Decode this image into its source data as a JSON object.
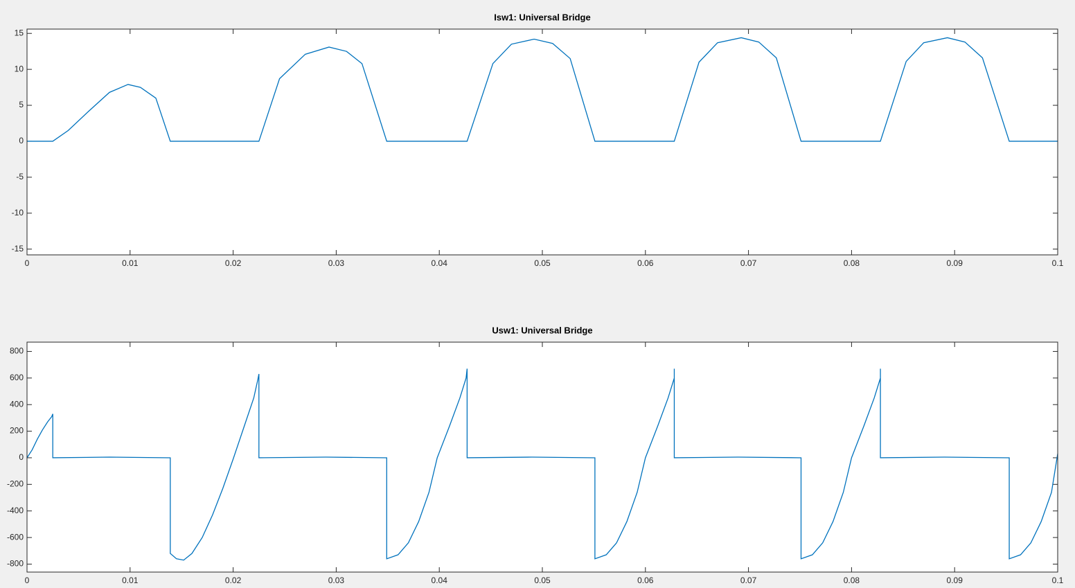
{
  "chart_data": [
    {
      "type": "line",
      "title": "Isw1: Universal Bridge",
      "x": [
        0,
        0.0025,
        0.004,
        0.006,
        0.008,
        0.0098,
        0.011,
        0.0125,
        0.0139,
        0.0225,
        0.0245,
        0.027,
        0.0293,
        0.031,
        0.0325,
        0.0349,
        0.0427,
        0.0452,
        0.047,
        0.0492,
        0.051,
        0.0527,
        0.0551,
        0.0628,
        0.0652,
        0.067,
        0.0693,
        0.071,
        0.0727,
        0.0751,
        0.0828,
        0.0853,
        0.087,
        0.0893,
        0.091,
        0.0927,
        0.0953,
        0.1
      ],
      "series": [
        {
          "color": "#0072bd",
          "values": [
            0,
            0,
            1.5,
            4.2,
            6.8,
            7.9,
            7.5,
            6.0,
            0,
            0,
            8.7,
            12.1,
            13.1,
            12.5,
            10.8,
            0,
            0,
            10.8,
            13.5,
            14.2,
            13.6,
            11.5,
            0,
            0,
            11.0,
            13.7,
            14.4,
            13.8,
            11.6,
            0,
            0,
            11.1,
            13.7,
            14.4,
            13.8,
            11.6,
            0,
            0
          ]
        }
      ],
      "xlim": [
        0,
        0.1
      ],
      "xticks": [
        0,
        0.01,
        0.02,
        0.03,
        0.04,
        0.05,
        0.06,
        0.07,
        0.08,
        0.09,
        0.1
      ],
      "ylim": [
        -15.8,
        15.6
      ],
      "yticks": [
        -15,
        -10,
        -5,
        0,
        5,
        10,
        15
      ]
    },
    {
      "type": "line",
      "title": "Usw1: Universal Bridge",
      "x": [
        0,
        0.0005,
        0.001,
        0.0015,
        0.002,
        0.0024,
        0.0025,
        0.0025,
        0.008,
        0.0139,
        0.0139,
        0.0145,
        0.0152,
        0.016,
        0.017,
        0.018,
        0.019,
        0.02,
        0.021,
        0.022,
        0.0224,
        0.0225,
        0.0225,
        0.029,
        0.0349,
        0.0349,
        0.036,
        0.037,
        0.038,
        0.039,
        0.0398,
        0.041,
        0.042,
        0.0426,
        0.0427,
        0.0427,
        0.049,
        0.0551,
        0.0551,
        0.0562,
        0.0572,
        0.0582,
        0.0592,
        0.06,
        0.0612,
        0.0622,
        0.0628,
        0.0628,
        0.0628,
        0.069,
        0.0751,
        0.0751,
        0.0762,
        0.0772,
        0.0782,
        0.0792,
        0.08,
        0.0812,
        0.0822,
        0.0828,
        0.0828,
        0.0828,
        0.089,
        0.0953,
        0.0953,
        0.0964,
        0.0974,
        0.0984,
        0.0994,
        0.1
      ],
      "series": [
        {
          "color": "#0072bd",
          "values": [
            0,
            60,
            140,
            210,
            270,
            310,
            330,
            0,
            5,
            0,
            -720,
            -760,
            -770,
            -720,
            -600,
            -430,
            -230,
            -10,
            220,
            450,
            590,
            630,
            0,
            5,
            0,
            -760,
            -730,
            -640,
            -480,
            -260,
            0,
            240,
            450,
            600,
            670,
            0,
            5,
            0,
            -760,
            -730,
            -640,
            -480,
            -260,
            0,
            240,
            450,
            600,
            670,
            0,
            5,
            0,
            -760,
            -730,
            -640,
            -480,
            -260,
            0,
            240,
            450,
            600,
            670,
            0,
            5,
            0,
            -760,
            -730,
            -640,
            -480,
            -260,
            30
          ]
        }
      ],
      "xlim": [
        0,
        0.1
      ],
      "xticks": [
        0,
        0.01,
        0.02,
        0.03,
        0.04,
        0.05,
        0.06,
        0.07,
        0.08,
        0.09,
        0.1
      ],
      "ylim": [
        -860,
        870
      ],
      "yticks": [
        -800,
        -600,
        -400,
        -200,
        0,
        200,
        400,
        600,
        800
      ]
    }
  ]
}
